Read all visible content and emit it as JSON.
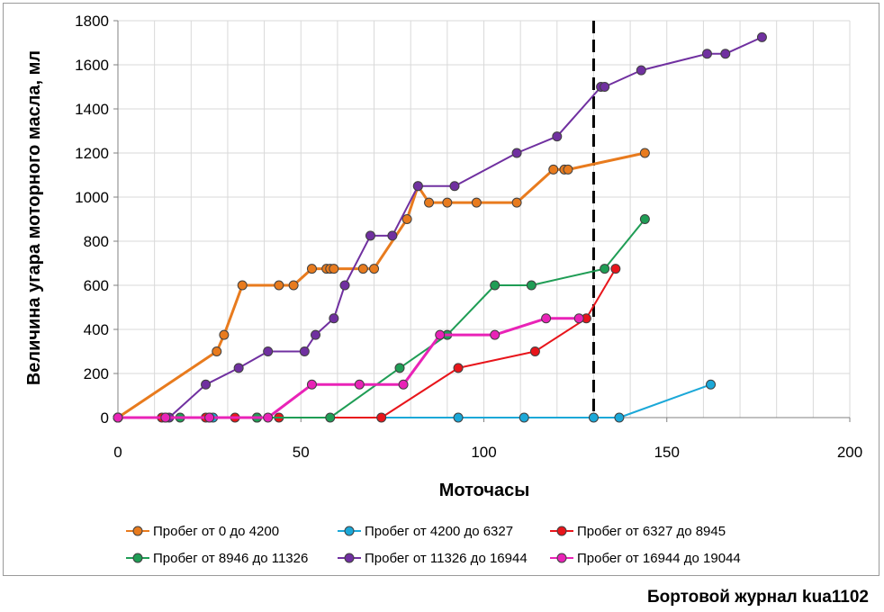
{
  "chart_data": {
    "type": "scatter",
    "title": "",
    "xlabel": "Моточасы",
    "ylabel": "Величина угара моторного масла, мл",
    "xlim": [
      0,
      200
    ],
    "ylim": [
      0,
      1800
    ],
    "x_ticks": [
      0,
      50,
      100,
      150,
      200
    ],
    "y_ticks": [
      0,
      200,
      400,
      600,
      800,
      1000,
      1200,
      1400,
      1600,
      1800
    ],
    "grid": true,
    "legend_position": "bottom",
    "reference_line": {
      "x": 130,
      "style": "dashed",
      "color": "#000000"
    },
    "series": [
      {
        "name": "Пробег от 0 до 4200",
        "color": "#E87B1E",
        "line_width": 3,
        "points": [
          [
            0,
            0
          ],
          [
            27,
            300
          ],
          [
            29,
            375
          ],
          [
            34,
            600
          ],
          [
            44,
            600
          ],
          [
            48,
            600
          ],
          [
            53,
            675
          ],
          [
            57,
            675
          ],
          [
            58,
            675
          ],
          [
            59,
            675
          ],
          [
            67,
            675
          ],
          [
            70,
            675
          ],
          [
            79,
            900
          ],
          [
            82,
            1050
          ],
          [
            85,
            975
          ],
          [
            90,
            975
          ],
          [
            98,
            975
          ],
          [
            109,
            975
          ],
          [
            119,
            1125
          ],
          [
            122,
            1125
          ],
          [
            123,
            1125
          ],
          [
            144,
            1200
          ]
        ]
      },
      {
        "name": "Пробег от 4200 до 6327",
        "color": "#1BA8D8",
        "line_width": 2,
        "points": [
          [
            0,
            0
          ],
          [
            13,
            0
          ],
          [
            25,
            0
          ],
          [
            26,
            0
          ],
          [
            38,
            0
          ],
          [
            93,
            0
          ],
          [
            111,
            0
          ],
          [
            130,
            0
          ],
          [
            137,
            0
          ],
          [
            162,
            150
          ]
        ]
      },
      {
        "name": "Пробег от 6327 до 8945",
        "color": "#E8151B",
        "line_width": 2,
        "points": [
          [
            0,
            0
          ],
          [
            12,
            0
          ],
          [
            24,
            0
          ],
          [
            32,
            0
          ],
          [
            38,
            0
          ],
          [
            44,
            0
          ],
          [
            72,
            0
          ],
          [
            93,
            225
          ],
          [
            114,
            300
          ],
          [
            128,
            450
          ],
          [
            136,
            675
          ]
        ]
      },
      {
        "name": "Пробег от 8946 до 11326",
        "color": "#1F9D55",
        "line_width": 2,
        "points": [
          [
            0,
            0
          ],
          [
            17,
            0
          ],
          [
            38,
            0
          ],
          [
            58,
            0
          ],
          [
            77,
            225
          ],
          [
            90,
            375
          ],
          [
            103,
            600
          ],
          [
            113,
            600
          ],
          [
            133,
            675
          ],
          [
            144,
            900
          ]
        ]
      },
      {
        "name": "Пробег от 11326 до 16944",
        "color": "#7030A0",
        "line_width": 2,
        "points": [
          [
            0,
            0
          ],
          [
            14,
            0
          ],
          [
            24,
            150
          ],
          [
            33,
            225
          ],
          [
            41,
            300
          ],
          [
            51,
            300
          ],
          [
            54,
            375
          ],
          [
            59,
            450
          ],
          [
            62,
            600
          ],
          [
            69,
            825
          ],
          [
            75,
            825
          ],
          [
            82,
            1050
          ],
          [
            92,
            1050
          ],
          [
            109,
            1200
          ],
          [
            120,
            1275
          ],
          [
            132,
            1500
          ],
          [
            133,
            1500
          ],
          [
            143,
            1575
          ],
          [
            161,
            1650
          ],
          [
            166,
            1650
          ],
          [
            176,
            1725
          ]
        ]
      },
      {
        "name": "Пробег от 16944 до 19044",
        "color": "#E923B7",
        "line_width": 3,
        "points": [
          [
            0,
            0
          ],
          [
            13,
            0
          ],
          [
            25,
            0
          ],
          [
            41,
            0
          ],
          [
            53,
            150
          ],
          [
            66,
            150
          ],
          [
            78,
            150
          ],
          [
            88,
            375
          ],
          [
            103,
            375
          ],
          [
            117,
            450
          ],
          [
            126,
            450
          ]
        ]
      }
    ]
  },
  "footer": {
    "watermark": "Бортовой журнал kua1102"
  }
}
